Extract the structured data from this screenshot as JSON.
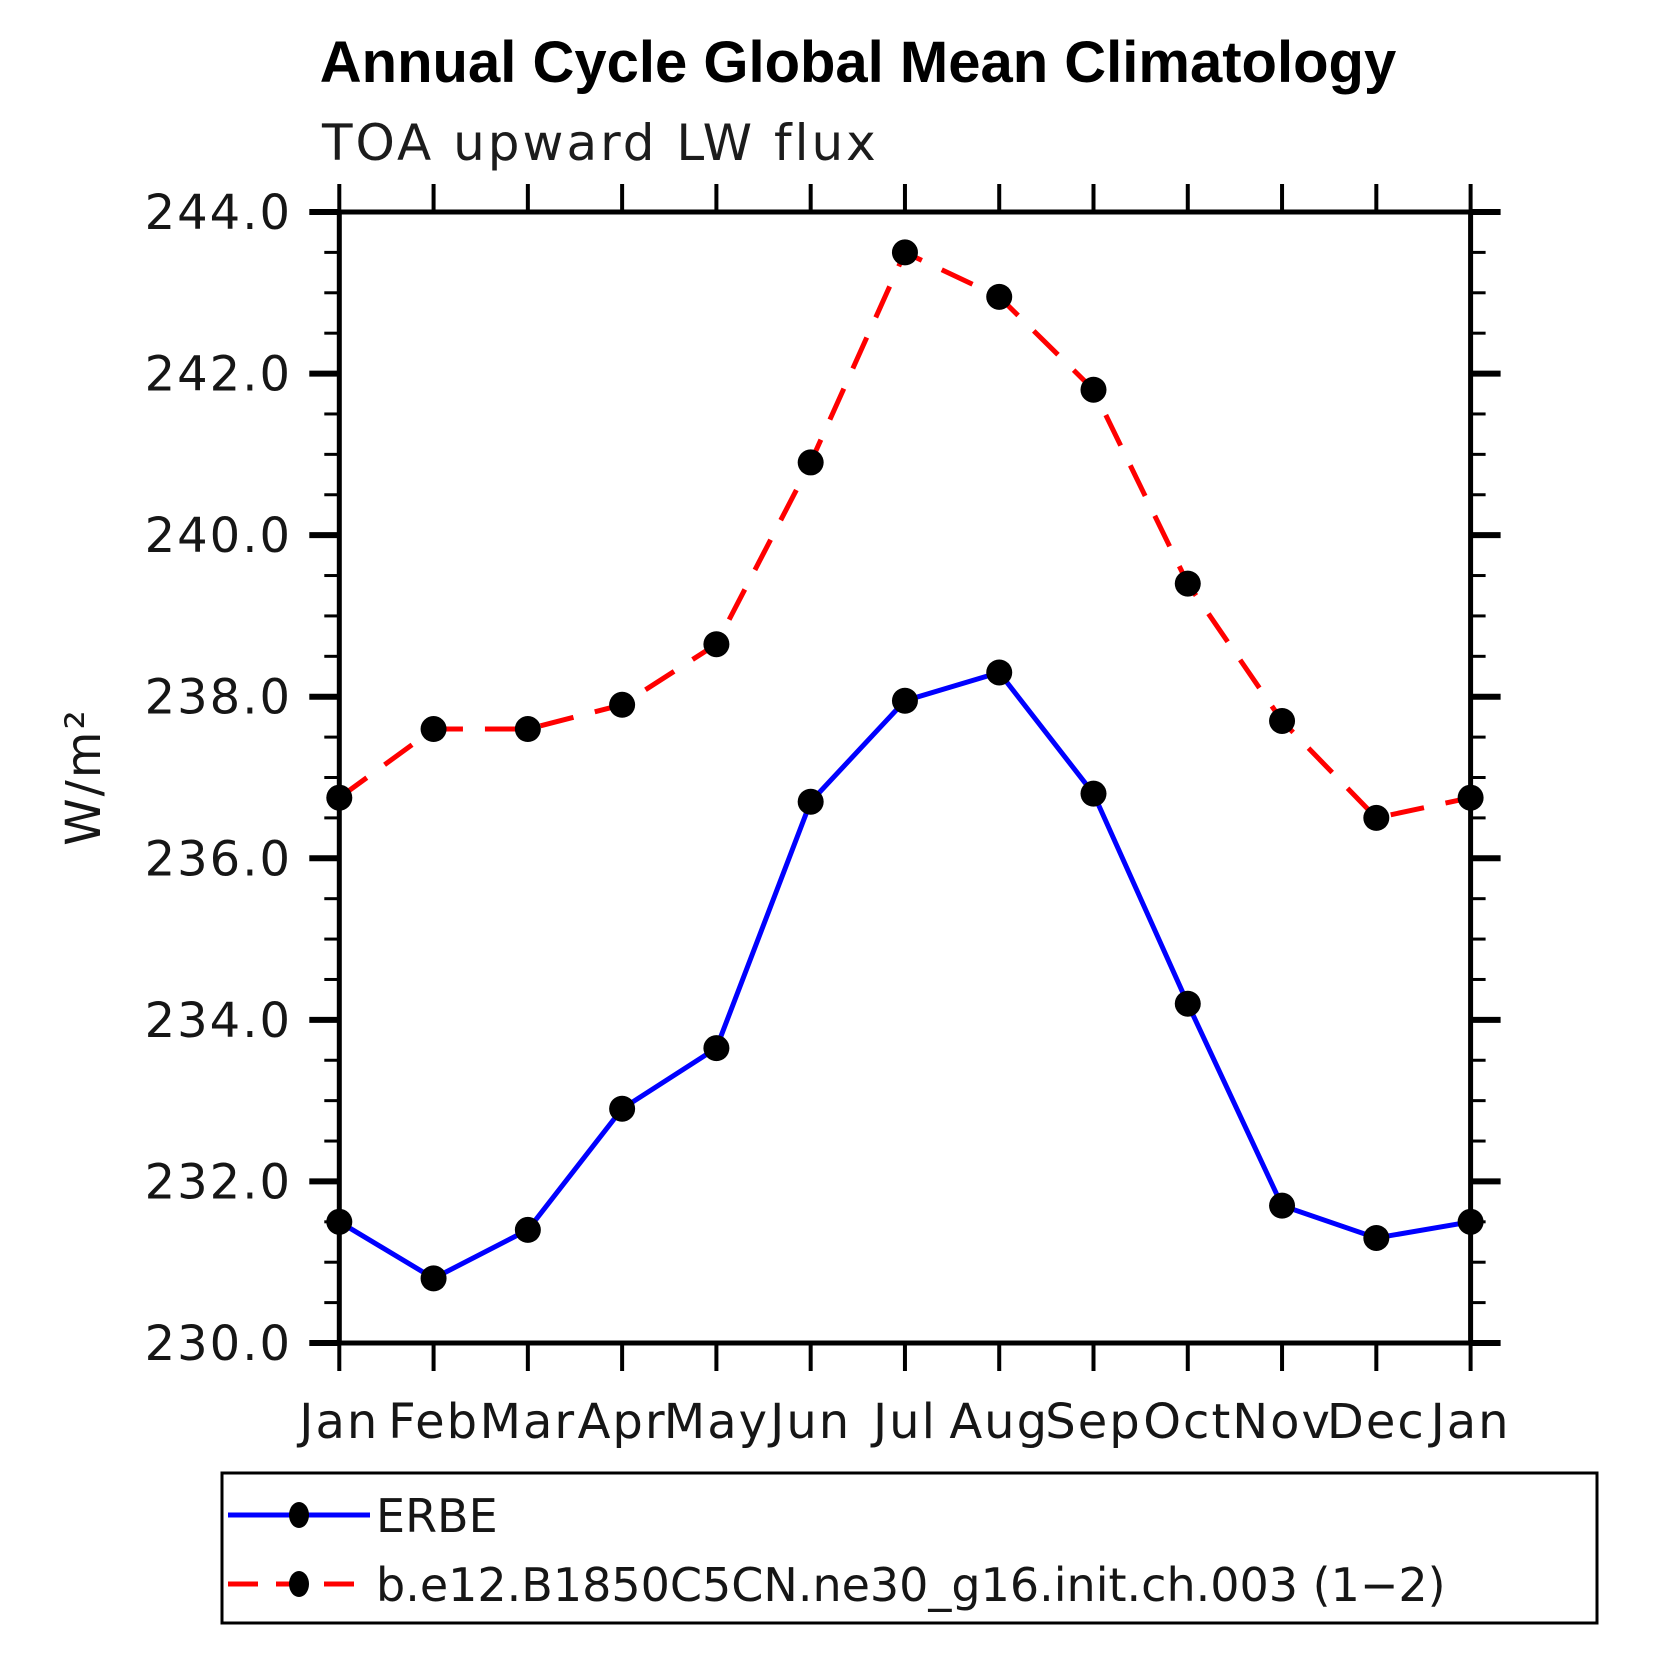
{
  "page": {
    "title": "Annual Cycle Global Mean Climatology"
  },
  "chart_data": {
    "type": "line",
    "title": "Annual Cycle Global Mean Climatology",
    "subtitle": "TOA upward LW flux",
    "ylabel": "W/m²",
    "categories": [
      "Jan",
      "Feb",
      "Mar",
      "Apr",
      "May",
      "Jun",
      "Jul",
      "Aug",
      "Sep",
      "Oct",
      "Nov",
      "Dec",
      "Jan"
    ],
    "series": [
      {
        "name": "ERBE",
        "color": "#0000ff",
        "style": "solid",
        "values": [
          231.5,
          230.8,
          231.4,
          232.9,
          233.65,
          236.7,
          237.95,
          238.3,
          236.8,
          234.2,
          231.7,
          231.3,
          231.5
        ]
      },
      {
        "name": "b.e12.B1850C5CN.ne30_g16.init.ch.003 (1−2)",
        "color": "#ff0000",
        "style": "dashed",
        "values": [
          236.75,
          237.6,
          237.6,
          237.9,
          238.65,
          240.9,
          243.5,
          242.95,
          241.8,
          239.4,
          237.7,
          236.5,
          236.75
        ]
      }
    ],
    "ylim": [
      230.0,
      244.0
    ],
    "y_major_step": 2.0,
    "y_minor_step": 0.5,
    "y_tick_labels": [
      "244.0",
      "242.0",
      "240.0",
      "238.0",
      "236.0",
      "234.0",
      "232.0",
      "230.0"
    ],
    "marker_color": "#000000",
    "axis_color": "#000000",
    "grid": "off",
    "legend_position": "bottom"
  }
}
